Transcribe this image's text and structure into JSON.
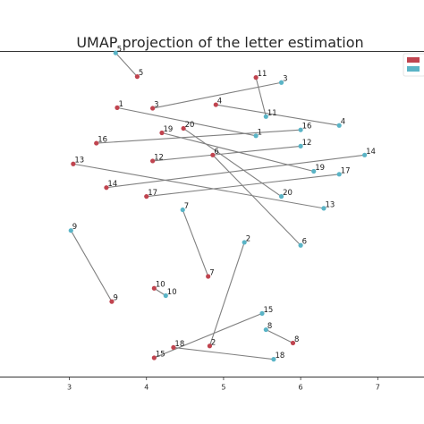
{
  "chart_data": {
    "type": "scatter",
    "title": "UMAP projection of the letter estimation",
    "xlabel": "",
    "ylabel": "",
    "xlim": [
      2.1,
      7.6
    ],
    "ylim": [
      -1.0,
      10.0
    ],
    "xticks": [
      3,
      4,
      5,
      6,
      7
    ],
    "grid": false,
    "legend_position": "top-right",
    "colors": {
      "series_a": "#c0444f",
      "series_b": "#5ab4c6",
      "connector": "#808080"
    },
    "series": [
      {
        "color": "#c0444f",
        "points": [
          {
            "label": "5",
            "x": 3.88,
            "y": 9.15
          },
          {
            "label": "1",
            "x": 3.62,
            "y": 8.1
          },
          {
            "label": "3",
            "x": 4.08,
            "y": 8.08
          },
          {
            "label": "4",
            "x": 4.9,
            "y": 8.2
          },
          {
            "label": "11",
            "x": 5.42,
            "y": 9.12
          },
          {
            "label": "16",
            "x": 3.35,
            "y": 6.9
          },
          {
            "label": "19",
            "x": 4.2,
            "y": 7.25
          },
          {
            "label": "20",
            "x": 4.48,
            "y": 7.4
          },
          {
            "label": "6",
            "x": 4.86,
            "y": 6.5
          },
          {
            "label": "12",
            "x": 4.08,
            "y": 6.3
          },
          {
            "label": "13",
            "x": 3.05,
            "y": 6.2
          },
          {
            "label": "14",
            "x": 3.48,
            "y": 5.4
          },
          {
            "label": "17",
            "x": 4.0,
            "y": 5.1
          },
          {
            "label": "7",
            "x": 4.8,
            "y": 2.4
          },
          {
            "label": "9",
            "x": 3.55,
            "y": 1.55
          },
          {
            "label": "10",
            "x": 4.1,
            "y": 2.0
          },
          {
            "label": "2",
            "x": 4.82,
            "y": 0.05
          },
          {
            "label": "18",
            "x": 4.35,
            "y": 0.0
          },
          {
            "label": "15",
            "x": 4.1,
            "y": -0.35
          },
          {
            "label": "8",
            "x": 5.9,
            "y": 0.15
          }
        ]
      },
      {
        "color": "#5ab4c6",
        "points": [
          {
            "label": "5",
            "x": 3.6,
            "y": 9.95
          },
          {
            "label": "3",
            "x": 5.75,
            "y": 8.95
          },
          {
            "label": "11",
            "x": 5.55,
            "y": 7.8
          },
          {
            "label": "4",
            "x": 6.5,
            "y": 7.5
          },
          {
            "label": "1",
            "x": 5.42,
            "y": 7.15
          },
          {
            "label": "16",
            "x": 6.0,
            "y": 7.35
          },
          {
            "label": "12",
            "x": 6.0,
            "y": 6.8
          },
          {
            "label": "19",
            "x": 6.17,
            "y": 5.95
          },
          {
            "label": "14",
            "x": 6.83,
            "y": 6.5
          },
          {
            "label": "17",
            "x": 6.5,
            "y": 5.85
          },
          {
            "label": "20",
            "x": 5.75,
            "y": 5.1
          },
          {
            "label": "13",
            "x": 6.3,
            "y": 4.7
          },
          {
            "label": "7",
            "x": 4.47,
            "y": 4.65
          },
          {
            "label": "6",
            "x": 6.0,
            "y": 3.45
          },
          {
            "label": "2",
            "x": 5.27,
            "y": 3.55
          },
          {
            "label": "9",
            "x": 3.02,
            "y": 3.95
          },
          {
            "label": "10",
            "x": 4.25,
            "y": 1.75
          },
          {
            "label": "15",
            "x": 5.5,
            "y": 1.15
          },
          {
            "label": "8",
            "x": 5.55,
            "y": 0.6
          },
          {
            "label": "18",
            "x": 5.65,
            "y": -0.4
          }
        ]
      }
    ],
    "pairs": [
      "1",
      "2",
      "3",
      "4",
      "5",
      "6",
      "7",
      "8",
      "9",
      "10",
      "11",
      "12",
      "13",
      "14",
      "15",
      "16",
      "17",
      "18",
      "19",
      "20"
    ]
  }
}
